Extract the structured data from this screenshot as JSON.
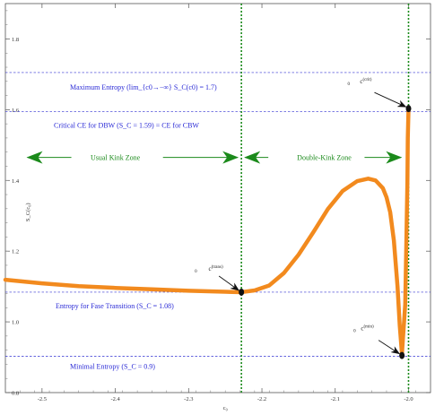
{
  "chart_data": {
    "type": "line",
    "xlabel": "c₀",
    "ylabel": "S_C(c₀)",
    "xlim": [
      -2.55,
      -1.97
    ],
    "ylim": [
      0.8,
      1.9
    ],
    "x_ticks": [
      -2.5,
      -2.4,
      -2.3,
      -2.2,
      -2.1,
      -2.0
    ],
    "x_tick_labels": [
      "-2.5",
      "-2.4",
      "-2.3",
      "-2.2",
      "-2.1",
      "-2.0"
    ],
    "y_ticks": [
      0.8,
      1.0,
      1.2,
      1.4,
      1.6,
      1.8
    ],
    "y_tick_labels": [
      "0.8",
      "1.0",
      "1.2",
      "1.4",
      "1.6",
      "1.8"
    ],
    "grid": false,
    "series": [
      {
        "color": "#f28a1e",
        "x": [
          -2.55,
          -2.5,
          -2.45,
          -2.4,
          -2.35,
          -2.3,
          -2.25,
          -2.228,
          -2.21,
          -2.19,
          -2.17,
          -2.15,
          -2.13,
          -2.11,
          -2.09,
          -2.07,
          -2.055,
          -2.045,
          -2.035,
          -2.03,
          -2.025,
          -2.02,
          -2.015,
          -2.012,
          -2.009,
          -2.0045,
          -2.003,
          -2.0015,
          -2.001,
          -2.0
        ],
        "y": [
          1.119,
          1.109,
          1.101,
          1.096,
          1.092,
          1.088,
          1.085,
          1.084,
          1.089,
          1.103,
          1.138,
          1.19,
          1.253,
          1.319,
          1.37,
          1.398,
          1.405,
          1.4,
          1.378,
          1.352,
          1.31,
          1.23,
          1.1,
          0.99,
          0.91,
          1.05,
          1.22,
          1.4,
          1.52,
          1.603
        ]
      }
    ],
    "reference_lines": [
      {
        "axis": "y",
        "value": 1.705,
        "color": "#3232d2",
        "style": "dashed",
        "label": "Maximum Entropy (lim_{c0→−∞} S_C(c0) = 1.7)"
      },
      {
        "axis": "y",
        "value": 1.595,
        "color": "#3232d2",
        "style": "dashed",
        "label": "Critical CE for DBW (S_C = 1.59) = CE for CBW"
      },
      {
        "axis": "y",
        "value": 1.084,
        "color": "#3232d2",
        "style": "dashed",
        "label": "Entropy for Fase Transition (S_C = 1.08)"
      },
      {
        "axis": "y",
        "value": 0.903,
        "color": "#3232d2",
        "style": "dashed",
        "label": "Minimal Entropy (S_C = 0.9)"
      },
      {
        "axis": "x",
        "value": -2.228,
        "color": "#1b8a1b",
        "style": "dotted"
      },
      {
        "axis": "x",
        "value": -2.0,
        "color": "#1b8a1b",
        "style": "dotted"
      }
    ],
    "zones": [
      {
        "label": "Usual Kink Zone",
        "from": -2.55,
        "to": -2.228
      },
      {
        "label": "Double-Kink Zone",
        "from": -2.228,
        "to": -2.0
      }
    ],
    "points": [
      {
        "x": -2.228,
        "y": 1.084,
        "label": "c₀(trans)",
        "label_base": "c",
        "label_sub": "0",
        "label_sup": "(trans)"
      },
      {
        "x": -2.009,
        "y": 0.905,
        "label": "c₀(min)",
        "label_base": "c",
        "label_sub": "0",
        "label_sup": "(min)"
      },
      {
        "x": -2.0,
        "y": 1.603,
        "label": "c₀(crit)",
        "label_base": "c",
        "label_sub": "0",
        "label_sup": "(crit)"
      }
    ]
  }
}
